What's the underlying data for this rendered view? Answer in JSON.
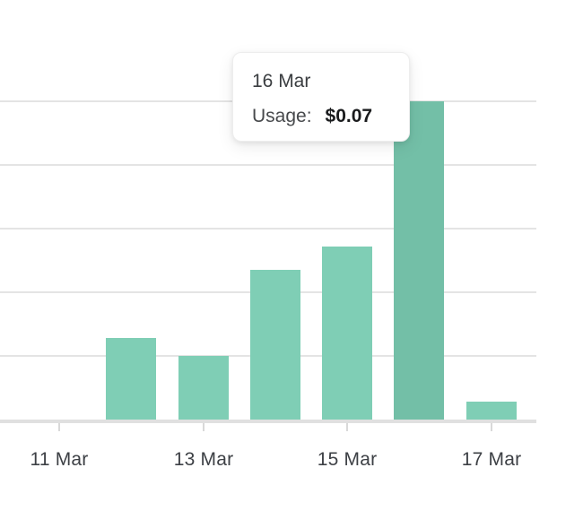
{
  "chart_data": {
    "type": "bar",
    "title": "",
    "xlabel": "",
    "ylabel": "",
    "categories": [
      "11 Mar",
      "12 Mar",
      "13 Mar",
      "14 Mar",
      "15 Mar",
      "16 Mar",
      "17 Mar"
    ],
    "series": [
      {
        "name": "Usage",
        "values": [
          0,
          0.018,
          0.014,
          0.033,
          0.038,
          0.07,
          0.004
        ]
      }
    ],
    "units": "USD",
    "ylim": [
      0,
      0.07
    ],
    "x_tick_labels": [
      "11 Mar",
      "13 Mar",
      "15 Mar",
      "17 Mar"
    ],
    "highlighted_category": "16 Mar",
    "highlighted_value_label": "$0.07",
    "grid": "horizontal",
    "legend": "none"
  },
  "tooltip": {
    "date": "16 Mar",
    "usage_label": "Usage:",
    "usage_value": "$0.07"
  },
  "colors": {
    "background": "#ffffff",
    "bar": "#7fceb5",
    "bar_highlight": "#73bfa7",
    "gridline": "#e4e4e4",
    "axis_line": "#e0e0e0",
    "tick": "#d9d9d9",
    "tick_label": "#3d4045",
    "tooltip_bg": "#ffffff",
    "tooltip_border": "#ededed",
    "tooltip_date": "#3a3d40",
    "tooltip_label": "#47494c",
    "tooltip_value": "#1a1b1d"
  }
}
